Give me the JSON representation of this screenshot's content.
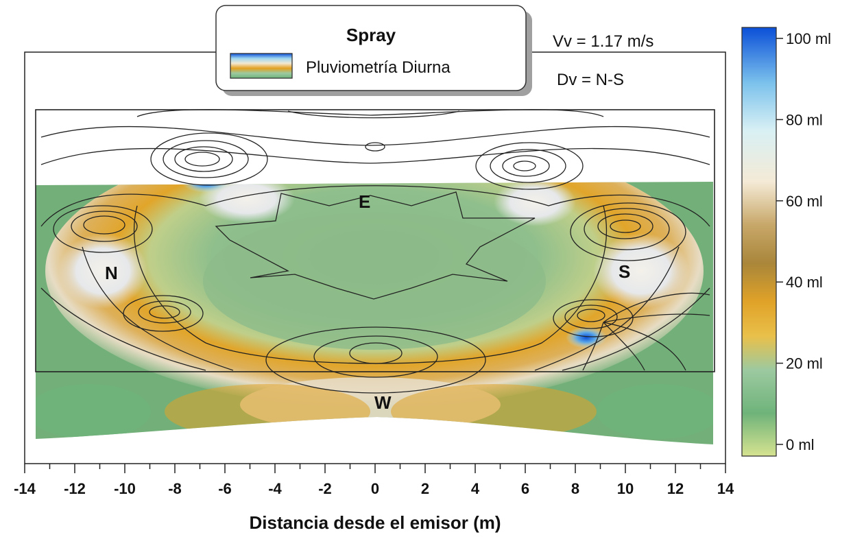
{
  "chart_data": {
    "type": "heatmap",
    "title": "",
    "xlabel": "Distancia desde el emisor (m)",
    "ylabel": "",
    "xlim": [
      -14,
      14
    ],
    "x_ticks": [
      "-14",
      "-12",
      "-10",
      "-8",
      "-6",
      "-4",
      "-2",
      "0",
      "2",
      "4",
      "6",
      "8",
      "10",
      "12",
      "14"
    ],
    "legend": {
      "title": "Spray",
      "entry": "Pluviometría Diurna",
      "placement": "top-center"
    },
    "parameters": [
      "Vv = 1.17 m/s",
      "Dv = N-S"
    ],
    "colorbar": {
      "range": [
        0,
        100
      ],
      "unit": "ml",
      "ticks": [
        "100 ml",
        "80 ml",
        "60 ml",
        "40 ml",
        "20 ml",
        "0 ml"
      ],
      "colors": [
        "#0d4fd6",
        "#bfe6f2",
        "#f2e8d2",
        "#b08a3a",
        "#e3a020",
        "#6fb37a",
        "#cfe08a"
      ]
    },
    "direction_labels": [
      "N",
      "E",
      "S",
      "W"
    ],
    "grid": false
  }
}
